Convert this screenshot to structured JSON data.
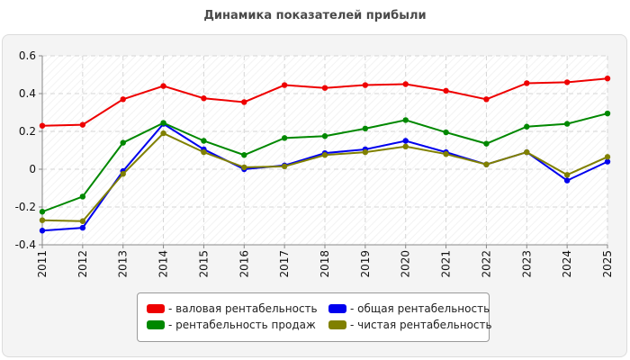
{
  "chart_data": {
    "type": "line",
    "title": "Динамика показателей прибыли",
    "x": [
      "2011",
      "2012",
      "2013",
      "2014",
      "2015",
      "2016",
      "2017",
      "2018",
      "2019",
      "2020",
      "2021",
      "2022",
      "2023",
      "2024",
      "2025"
    ],
    "ylim": [
      -0.4,
      0.6
    ],
    "yticks": [
      "0.6",
      "0.4",
      "0.2",
      "0",
      "-0.2",
      "-0.4"
    ],
    "ytick_values": [
      0.6,
      0.4,
      0.2,
      0,
      -0.2,
      -0.4
    ],
    "grid": true,
    "legend_position": "bottom",
    "series": [
      {
        "name": "- валовая рентабельность",
        "color": "#ee0000",
        "values": [
          0.23,
          0.235,
          0.37,
          0.44,
          0.375,
          0.355,
          0.445,
          0.43,
          0.445,
          0.45,
          0.415,
          0.37,
          0.455,
          0.46,
          0.48
        ]
      },
      {
        "name": "- общая рентабельность",
        "color": "#0000ee",
        "values": [
          -0.325,
          -0.31,
          -0.01,
          0.24,
          0.105,
          0.0,
          0.02,
          0.085,
          0.105,
          0.15,
          0.09,
          0.025,
          0.09,
          -0.06,
          0.04
        ]
      },
      {
        "name": "- рентабельность продаж",
        "color": "#008800",
        "values": [
          -0.225,
          -0.145,
          0.14,
          0.245,
          0.15,
          0.075,
          0.165,
          0.175,
          0.215,
          0.26,
          0.195,
          0.135,
          0.225,
          0.24,
          0.295
        ]
      },
      {
        "name": "- чистая рентабельность",
        "color": "#808000",
        "values": [
          -0.27,
          -0.275,
          -0.025,
          0.19,
          0.09,
          0.01,
          0.015,
          0.075,
          0.09,
          0.12,
          0.08,
          0.025,
          0.09,
          -0.03,
          0.065
        ]
      }
    ]
  }
}
